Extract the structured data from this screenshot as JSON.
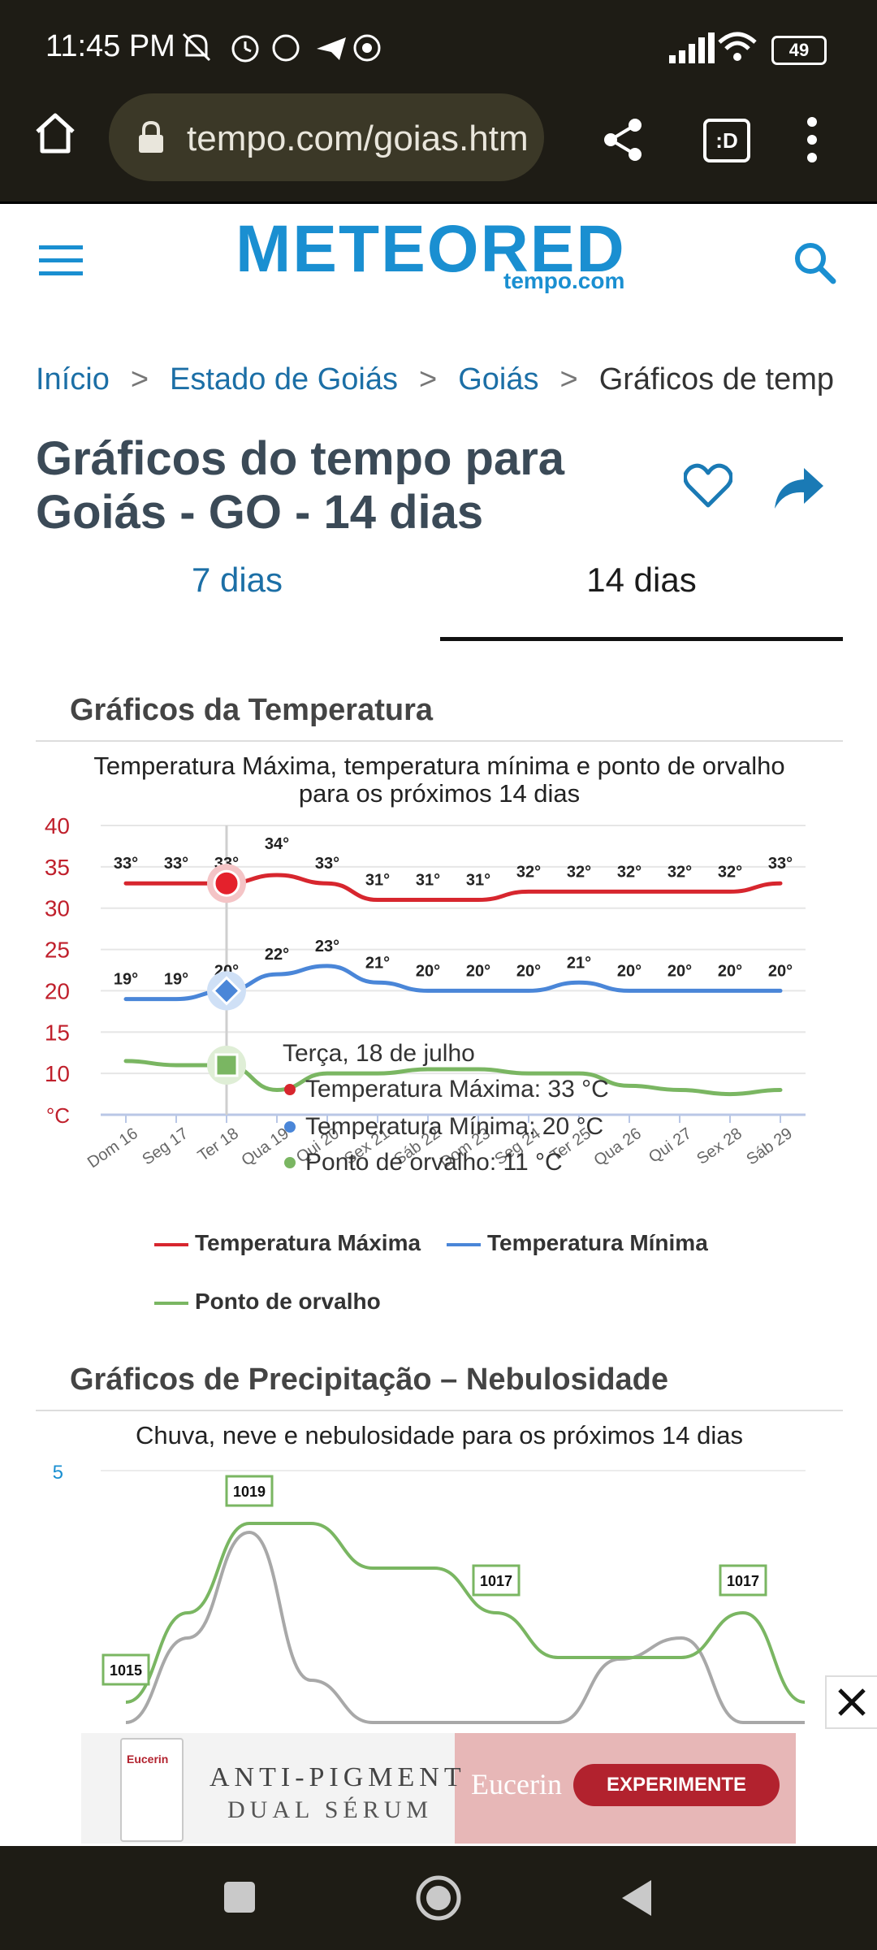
{
  "status": {
    "time": "11:45 PM",
    "battery": "49"
  },
  "browser": {
    "url": "tempo.com/goias.htm"
  },
  "site": {
    "brand_main": "METEORED",
    "brand_sub": "tempo.com"
  },
  "breadcrumb": [
    "Início",
    "Estado de Goiás",
    "Goiás",
    "Gráficos de temp"
  ],
  "page": {
    "title": "Gráficos do tempo para Goiás - GO - 14 dias"
  },
  "tabs": [
    {
      "label": "7 dias"
    },
    {
      "label": "14 dias"
    }
  ],
  "temp_section": {
    "title": "Gráficos da Temperatura",
    "subtitle_line1": "Temperatura Máxima, temperatura mínima e ponto de orvalho",
    "subtitle_line2": "para os próximos 14 dias",
    "unit": "°C",
    "legend": [
      "Temperatura Máxima",
      "Temperatura Mínima",
      "Ponto de orvalho"
    ]
  },
  "tooltip": {
    "date": "Terça, 18 de julho",
    "max": "Temperatura Máxima: 33 °C",
    "min": "Temperatura Mínima: 20 °C",
    "dew": "Ponto de orvalho: 11 °C"
  },
  "chart_data": [
    {
      "type": "line",
      "subtitle": "Temperatura Máxima, temperatura mínima e ponto de orvalho para os próximos 14 dias",
      "ylabel": "°C",
      "ylim": [
        5,
        40
      ],
      "yticks": [
        40,
        35,
        30,
        25,
        20,
        15,
        10
      ],
      "categories": [
        "Dom 16",
        "Seg 17",
        "Ter 18",
        "Qua 19",
        "Qui 20",
        "Sex 21",
        "Sáb 22",
        "Dom 23",
        "Seg 24",
        "Ter 25",
        "Qua 26",
        "Qui 27",
        "Sex 28",
        "Sáb 29"
      ],
      "series": [
        {
          "name": "Temperatura Máxima",
          "color": "#d7262e",
          "values": [
            33,
            33,
            33,
            34,
            33,
            31,
            31,
            31,
            32,
            32,
            32,
            32,
            32,
            33
          ],
          "labels": [
            "33°",
            "33°",
            "33°",
            "34°",
            "33°",
            "31°",
            "31°",
            "31°",
            "32°",
            "32°",
            "32°",
            "32°",
            "32°",
            "33°"
          ]
        },
        {
          "name": "Temperatura Mínima",
          "color": "#4a86d8",
          "values": [
            19,
            19,
            20,
            22,
            23,
            21,
            20,
            20,
            20,
            21,
            20,
            20,
            20,
            20
          ],
          "labels": [
            "19°",
            "19°",
            "20°",
            "22°",
            "23°",
            "21°",
            "20°",
            "20°",
            "20°",
            "21°",
            "20°",
            "20°",
            "20°",
            "20°"
          ]
        },
        {
          "name": "Ponto de orvalho",
          "color": "#7ab662",
          "values": [
            11.5,
            11,
            11,
            8,
            10,
            10,
            10.5,
            10.5,
            10,
            10,
            8.5,
            8,
            7.5,
            8
          ],
          "labels": []
        }
      ],
      "grid": true,
      "legend": "bottom"
    },
    {
      "type": "line",
      "subtitle": "Chuva, neve e nebulosidade para os próximos 14 dias",
      "yticks": [
        5
      ],
      "series": [
        {
          "name": "pressure",
          "color": "#7ab662",
          "values": [
            1015,
            1017,
            1019,
            1019,
            1018,
            1018,
            1017,
            1016,
            1016,
            1016,
            1017,
            1015
          ],
          "labels": [
            "1015",
            "1019",
            "1017",
            "1017"
          ]
        },
        {
          "name": "cloud",
          "color": "#a8a8a8",
          "values": [
            0,
            2,
            4.5,
            1,
            0,
            0,
            0,
            0,
            1.5,
            2,
            0,
            0
          ]
        }
      ]
    }
  ],
  "precip_section": {
    "title": "Gráficos de Precipitação – Nebulosidade",
    "subtitle": "Chuva, neve e nebulosidade para os próximos 14 dias",
    "ytick": "5",
    "labels": [
      "1015",
      "1019",
      "1017",
      "1017"
    ]
  },
  "ad": {
    "product": "Eucerin",
    "headline1": "ANTI-PIGMENT",
    "headline2": "DUAL SÉRUM",
    "brand": "Eucerin",
    "cta": "EXPERIMENTE"
  }
}
